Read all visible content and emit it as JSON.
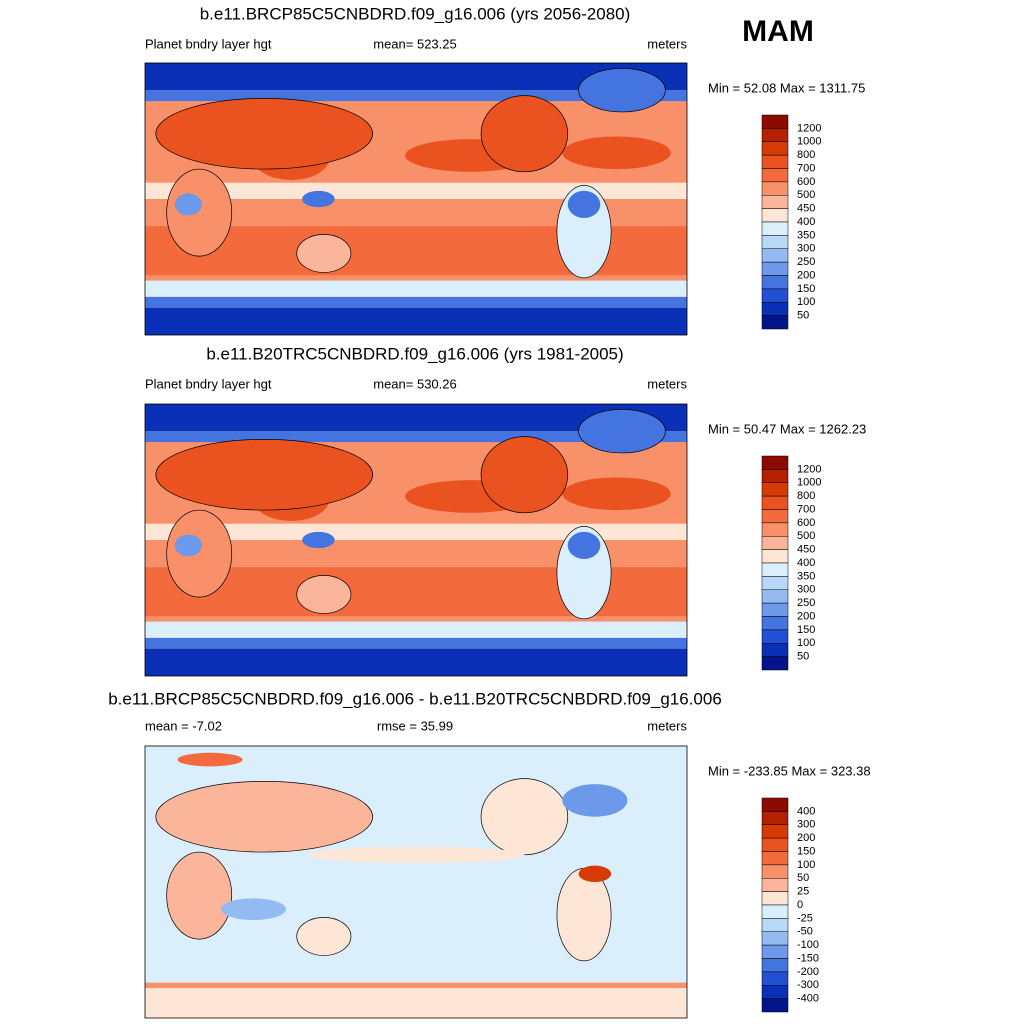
{
  "title": "MAM",
  "panels": [
    {
      "title": "b.e11.BRCP85C5CNBDRD.f09_g16.006 (yrs 2056-2080)",
      "left": "Planet bndry layer hgt",
      "center": "mean= 523.25",
      "right": "meters",
      "minmax": "Min =  52.08 Max = 1311.75",
      "colorbar": {
        "levels": [
          1200,
          1000,
          800,
          700,
          600,
          500,
          450,
          400,
          350,
          300,
          250,
          200,
          150,
          100,
          50
        ],
        "colors": [
          "#8c0a00",
          "#b52000",
          "#d63a05",
          "#ea5220",
          "#f36b3c",
          "#f8906a",
          "#fbb59a",
          "#fde6d6",
          "#dbeefc",
          "#b8d8f8",
          "#93bbf2",
          "#6c99ea",
          "#4474e0",
          "#2250d4",
          "#0a30b8",
          "#04148a"
        ]
      }
    },
    {
      "title": "b.e11.B20TRC5CNBDRD.f09_g16.006 (yrs 1981-2005)",
      "left": "Planet bndry layer hgt",
      "center": "mean= 530.26",
      "right": "meters",
      "minmax": "Min =  50.47 Max = 1262.23",
      "colorbar": {
        "levels": [
          1200,
          1000,
          800,
          700,
          600,
          500,
          450,
          400,
          350,
          300,
          250,
          200,
          150,
          100,
          50
        ],
        "colors": [
          "#8c0a00",
          "#b52000",
          "#d63a05",
          "#ea5220",
          "#f36b3c",
          "#f8906a",
          "#fbb59a",
          "#fde6d6",
          "#dbeefc",
          "#b8d8f8",
          "#93bbf2",
          "#6c99ea",
          "#4474e0",
          "#2250d4",
          "#0a30b8",
          "#04148a"
        ]
      }
    },
    {
      "title": "b.e11.BRCP85C5CNBDRD.f09_g16.006 - b.e11.B20TRC5CNBDRD.f09_g16.006",
      "left": "mean =  -7.02",
      "center": "rmse =  35.99",
      "right": "meters",
      "minmax": "Min = -233.85 Max = 323.38",
      "colorbar": {
        "levels": [
          400,
          300,
          200,
          150,
          100,
          50,
          25,
          0,
          -25,
          -50,
          -100,
          -150,
          -200,
          -300,
          -400
        ],
        "colors": [
          "#8c0a00",
          "#b52000",
          "#d63a05",
          "#ea5220",
          "#f36b3c",
          "#f8906a",
          "#fbb59a",
          "#fde6d6",
          "#dbeefc",
          "#b8d8f8",
          "#93bbf2",
          "#6c99ea",
          "#4474e0",
          "#2250d4",
          "#0a30b8",
          "#04148a"
        ]
      }
    }
  ]
}
